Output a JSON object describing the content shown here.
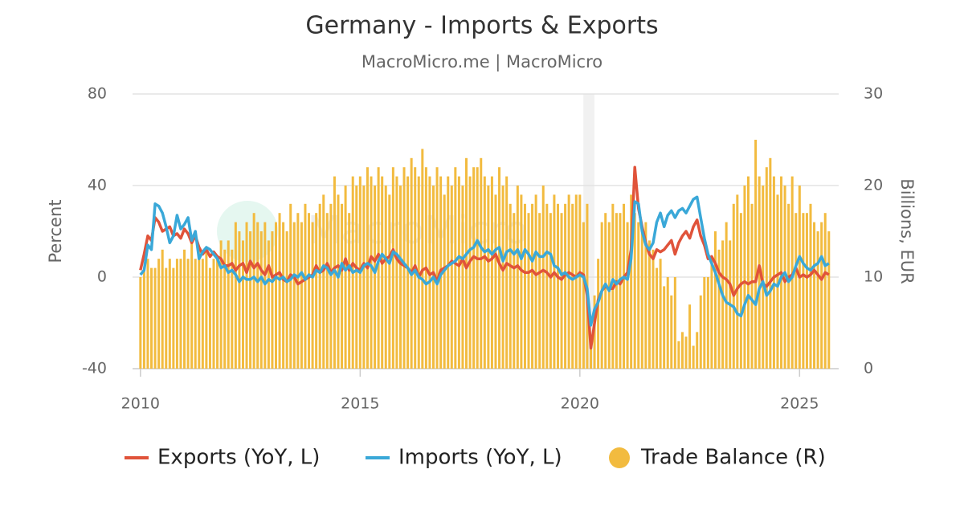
{
  "chart_data": {
    "type": "combo",
    "title": "Germany - Imports & Exports",
    "subtitle": "MacroMicro.me | MacroMicro",
    "watermark": "MacroMicro",
    "y_label": "Percent",
    "y2_label": "Billions, EUR",
    "xlim": [
      2009.82,
      2025.89
    ],
    "xticks": [
      2010,
      2015,
      2020,
      2025
    ],
    "ylim": [
      -40,
      80
    ],
    "yticks": [
      -40,
      0,
      40,
      80
    ],
    "y2lim": [
      0,
      30
    ],
    "y2ticks": [
      0,
      10,
      20,
      30
    ],
    "grid": true,
    "shaded_periods": [
      [
        2020.08,
        2020.33
      ]
    ],
    "x": [
      "2010-01",
      "2010-02",
      "2010-03",
      "2010-04",
      "2010-05",
      "2010-06",
      "2010-07",
      "2010-08",
      "2010-09",
      "2010-10",
      "2010-11",
      "2010-12",
      "2011-01",
      "2011-02",
      "2011-03",
      "2011-04",
      "2011-05",
      "2011-06",
      "2011-07",
      "2011-08",
      "2011-09",
      "2011-10",
      "2011-11",
      "2011-12",
      "2012-01",
      "2012-02",
      "2012-03",
      "2012-04",
      "2012-05",
      "2012-06",
      "2012-07",
      "2012-08",
      "2012-09",
      "2012-10",
      "2012-11",
      "2012-12",
      "2013-01",
      "2013-02",
      "2013-03",
      "2013-04",
      "2013-05",
      "2013-06",
      "2013-07",
      "2013-08",
      "2013-09",
      "2013-10",
      "2013-11",
      "2013-12",
      "2014-01",
      "2014-02",
      "2014-03",
      "2014-04",
      "2014-05",
      "2014-06",
      "2014-07",
      "2014-08",
      "2014-09",
      "2014-10",
      "2014-11",
      "2014-12",
      "2015-01",
      "2015-02",
      "2015-03",
      "2015-04",
      "2015-05",
      "2015-06",
      "2015-07",
      "2015-08",
      "2015-09",
      "2015-10",
      "2015-11",
      "2015-12",
      "2016-01",
      "2016-02",
      "2016-03",
      "2016-04",
      "2016-05",
      "2016-06",
      "2016-07",
      "2016-08",
      "2016-09",
      "2016-10",
      "2016-11",
      "2016-12",
      "2017-01",
      "2017-02",
      "2017-03",
      "2017-04",
      "2017-05",
      "2017-06",
      "2017-07",
      "2017-08",
      "2017-09",
      "2017-10",
      "2017-11",
      "2017-12",
      "2018-01",
      "2018-02",
      "2018-03",
      "2018-04",
      "2018-05",
      "2018-06",
      "2018-07",
      "2018-08",
      "2018-09",
      "2018-10",
      "2018-11",
      "2018-12",
      "2019-01",
      "2019-02",
      "2019-03",
      "2019-04",
      "2019-05",
      "2019-06",
      "2019-07",
      "2019-08",
      "2019-09",
      "2019-10",
      "2019-11",
      "2019-12",
      "2020-01",
      "2020-02",
      "2020-03",
      "2020-04",
      "2020-05",
      "2020-06",
      "2020-07",
      "2020-08",
      "2020-09",
      "2020-10",
      "2020-11",
      "2020-12",
      "2021-01",
      "2021-02",
      "2021-03",
      "2021-04",
      "2021-05",
      "2021-06",
      "2021-07",
      "2021-08",
      "2021-09",
      "2021-10",
      "2021-11",
      "2021-12",
      "2022-01",
      "2022-02",
      "2022-03",
      "2022-04",
      "2022-05",
      "2022-06",
      "2022-07",
      "2022-08",
      "2022-09",
      "2022-10",
      "2022-11",
      "2022-12",
      "2023-01",
      "2023-02",
      "2023-03",
      "2023-04",
      "2023-05",
      "2023-06",
      "2023-07",
      "2023-08",
      "2023-09",
      "2023-10",
      "2023-11",
      "2023-12",
      "2024-01",
      "2024-02",
      "2024-03",
      "2024-04",
      "2024-05",
      "2024-06",
      "2024-07",
      "2024-08",
      "2024-09",
      "2024-10",
      "2024-11",
      "2024-12",
      "2025-01",
      "2025-02",
      "2025-03",
      "2025-04",
      "2025-05",
      "2025-06",
      "2025-07",
      "2025-08",
      "2025-09"
    ],
    "series": [
      {
        "name": "Trade Balance (R)",
        "type": "bar",
        "axis": "y2",
        "color": "#f2bb3f",
        "values": [
          10,
          11,
          12,
          11,
          11,
          12,
          13,
          11,
          12,
          11,
          12,
          12,
          13,
          12,
          14,
          12,
          13,
          12,
          13,
          11,
          12,
          12,
          14,
          13,
          14,
          13,
          16,
          15,
          14,
          16,
          15,
          17,
          16,
          15,
          16,
          14,
          15,
          16,
          17,
          16,
          15,
          18,
          16,
          17,
          16,
          18,
          17,
          16,
          17,
          18,
          19,
          17,
          18,
          21,
          19,
          18,
          20,
          17,
          21,
          20,
          21,
          20,
          22,
          21,
          20,
          22,
          21,
          20,
          19,
          22,
          21,
          20,
          22,
          21,
          23,
          22,
          21,
          24,
          22,
          21,
          20,
          22,
          21,
          19,
          21,
          20,
          22,
          21,
          20,
          23,
          21,
          22,
          22,
          23,
          21,
          20,
          21,
          19,
          22,
          20,
          21,
          18,
          17,
          20,
          19,
          18,
          17,
          18,
          19,
          17,
          20,
          18,
          17,
          19,
          18,
          17,
          18,
          19,
          18,
          19,
          19,
          16,
          18,
          3.5,
          8,
          12,
          16,
          17,
          16,
          18,
          17,
          17,
          18,
          16,
          19,
          17,
          16,
          15,
          16,
          14,
          13,
          11,
          12,
          9,
          10,
          8,
          10,
          3,
          4,
          3.5,
          7,
          2.5,
          4,
          8,
          10,
          10,
          12,
          15,
          13,
          14,
          16,
          14,
          18,
          19,
          17,
          20,
          21,
          18,
          25,
          21,
          20,
          22,
          23,
          21,
          19,
          21,
          20,
          18,
          21,
          17,
          20,
          17,
          17,
          18,
          16,
          15,
          16,
          17,
          15
        ]
      },
      {
        "name": "Exports (YoY, L)",
        "type": "line",
        "color": "#e0533a",
        "values": [
          3,
          10,
          18,
          16,
          26,
          24,
          20,
          21,
          22,
          18,
          19,
          17,
          21,
          19,
          15,
          18,
          13,
          10,
          12,
          9,
          11,
          9,
          8,
          5,
          5,
          6,
          3,
          5,
          6,
          2,
          7,
          4,
          6,
          3,
          1,
          5,
          0,
          1,
          2,
          -1,
          -2,
          1,
          0,
          -3,
          -2,
          -1,
          0,
          1,
          5,
          2,
          3,
          6,
          2,
          4,
          5,
          3,
          8,
          3,
          6,
          4,
          3,
          6,
          4,
          9,
          7,
          10,
          6,
          8,
          9,
          12,
          8,
          6,
          5,
          4,
          2,
          5,
          0,
          3,
          4,
          1,
          2,
          -2,
          3,
          4,
          5,
          7,
          6,
          5,
          8,
          4,
          7,
          9,
          8,
          8,
          9,
          7,
          8,
          10,
          6,
          3,
          6,
          5,
          4,
          5,
          3,
          2,
          2,
          3,
          1,
          2,
          3,
          2,
          0,
          2,
          0,
          -1,
          1,
          2,
          1,
          0,
          2,
          1,
          -8,
          -31,
          -20,
          -10,
          -6,
          -4,
          -5,
          -5,
          -2,
          -3,
          0,
          2,
          12,
          48,
          30,
          22,
          15,
          10,
          8,
          12,
          11,
          12,
          14,
          16,
          10,
          15,
          18,
          20,
          17,
          22,
          25,
          18,
          14,
          8,
          9,
          6,
          2,
          0,
          -1,
          -3,
          -8,
          -5,
          -3,
          -2,
          -3,
          -2,
          -2,
          5,
          -3,
          -4,
          -2,
          0,
          1,
          2,
          -2,
          0,
          1,
          4,
          0,
          1,
          0,
          1,
          3,
          1,
          -1,
          2,
          1
        ]
      },
      {
        "name": "Imports (YoY, L)",
        "type": "line",
        "color": "#3aa8d8",
        "values": [
          1,
          3,
          14,
          12,
          32,
          31,
          28,
          22,
          15,
          18,
          27,
          21,
          23,
          26,
          16,
          20,
          8,
          11,
          13,
          12,
          10,
          8,
          4,
          5,
          2,
          3,
          1,
          -2,
          0,
          -1,
          -1,
          0,
          -2,
          0,
          -3,
          -1,
          -2,
          0,
          -1,
          0,
          -2,
          -1,
          1,
          0,
          2,
          -1,
          1,
          0,
          3,
          2,
          5,
          4,
          1,
          3,
          0,
          6,
          3,
          5,
          2,
          3,
          2,
          5,
          6,
          5,
          2,
          7,
          10,
          8,
          6,
          11,
          10,
          8,
          6,
          4,
          1,
          3,
          0,
          -1,
          -3,
          -2,
          0,
          -3,
          1,
          3,
          5,
          6,
          7,
          9,
          8,
          10,
          12,
          13,
          16,
          13,
          11,
          12,
          10,
          12,
          13,
          7,
          11,
          12,
          10,
          12,
          8,
          12,
          10,
          7,
          11,
          9,
          9,
          11,
          10,
          5,
          4,
          1,
          2,
          0,
          -1,
          0,
          1,
          0,
          -5,
          -21,
          -14,
          -11,
          -6,
          -3,
          -6,
          -1,
          -3,
          -1,
          0,
          -1,
          8,
          33,
          32,
          20,
          14,
          12,
          15,
          24,
          28,
          22,
          27,
          29,
          26,
          29,
          30,
          28,
          31,
          34,
          35,
          26,
          17,
          10,
          6,
          2,
          -3,
          -8,
          -11,
          -12,
          -13,
          -16,
          -17,
          -12,
          -8,
          -10,
          -12,
          -5,
          -2,
          -8,
          -6,
          -3,
          -4,
          0,
          2,
          -2,
          0,
          5,
          9,
          6,
          4,
          3,
          5,
          6,
          9,
          5,
          6
        ]
      }
    ],
    "legend_order": [
      1,
      2,
      0
    ]
  }
}
